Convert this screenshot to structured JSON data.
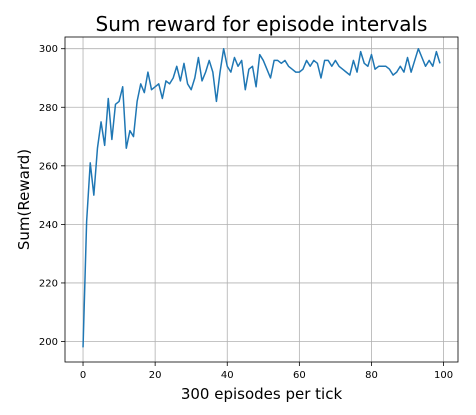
{
  "chart_data": {
    "type": "line",
    "title": "Sum reward for episode intervals",
    "xlabel": "300 episodes per tick",
    "ylabel": "Sum(Reward)",
    "xlim": [
      -5,
      104
    ],
    "ylim": [
      193,
      304
    ],
    "xticks": [
      0,
      20,
      40,
      60,
      80,
      100
    ],
    "yticks": [
      200,
      220,
      240,
      260,
      280,
      300
    ],
    "grid": true,
    "line_color": "#1f77b4",
    "series": [
      {
        "x": [
          0,
          1,
          2,
          3,
          4,
          5,
          6,
          7,
          8,
          9,
          10,
          11,
          12,
          13,
          14,
          15,
          16,
          17,
          18,
          19,
          20,
          21,
          22,
          23,
          24,
          25,
          26,
          27,
          28,
          29,
          30,
          31,
          32,
          33,
          34,
          35,
          36,
          37,
          38,
          39,
          40,
          41,
          42,
          43,
          44,
          45,
          46,
          47,
          48,
          49,
          50,
          51,
          52,
          53,
          54,
          55,
          56,
          57,
          58,
          59,
          60,
          61,
          62,
          63,
          64,
          65,
          66,
          67,
          68,
          69,
          70,
          71,
          72,
          73,
          74,
          75,
          76,
          77,
          78,
          79,
          80,
          81,
          82,
          83,
          84,
          85,
          86,
          87,
          88,
          89,
          90,
          91,
          92,
          93,
          94,
          95,
          96,
          97,
          98,
          99
        ],
        "values": [
          198,
          241,
          261,
          250,
          266,
          275,
          267,
          283,
          269,
          281,
          282,
          287,
          266,
          272,
          270,
          282,
          288,
          285,
          292,
          286,
          287,
          288,
          283,
          289,
          288,
          290,
          294,
          289,
          295,
          288,
          286,
          290,
          297,
          289,
          292,
          296,
          292,
          282,
          292,
          300,
          294,
          292,
          297,
          294,
          296,
          286,
          293,
          294,
          287,
          298,
          296,
          293,
          290,
          296,
          296,
          295,
          296,
          294,
          293,
          292,
          292,
          293,
          296,
          294,
          296,
          295,
          290,
          296,
          296,
          294,
          296,
          294,
          293,
          292,
          291,
          296,
          292,
          299,
          295,
          294,
          298,
          293,
          294,
          294,
          294,
          293,
          291,
          292,
          294,
          292,
          297,
          292,
          296,
          300,
          297,
          294,
          296,
          294,
          299,
          295
        ]
      }
    ]
  }
}
